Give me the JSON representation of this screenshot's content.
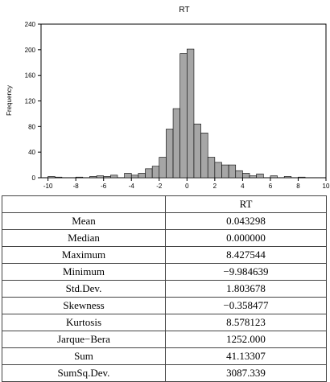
{
  "chart_data": {
    "type": "bar",
    "title": "RT",
    "xlabel": "",
    "ylabel": "Frequency",
    "xlim": [
      -10.5,
      10
    ],
    "ylim": [
      0,
      240
    ],
    "xticks": [
      "-10",
      "-8",
      "-6",
      "-4",
      "-2",
      "0",
      "2",
      "4",
      "6",
      "8",
      "10"
    ],
    "yticks": [
      "0",
      "40",
      "80",
      "120",
      "160",
      "200",
      "240"
    ],
    "bin_width": 0.5,
    "bins": [
      {
        "x": -10.0,
        "count": 2
      },
      {
        "x": -9.5,
        "count": 1
      },
      {
        "x": -8.0,
        "count": 1
      },
      {
        "x": -7.0,
        "count": 2
      },
      {
        "x": -6.5,
        "count": 3
      },
      {
        "x": -6.0,
        "count": 2
      },
      {
        "x": -5.5,
        "count": 4
      },
      {
        "x": -4.5,
        "count": 7
      },
      {
        "x": -4.0,
        "count": 4
      },
      {
        "x": -3.5,
        "count": 7
      },
      {
        "x": -3.0,
        "count": 14
      },
      {
        "x": -2.5,
        "count": 18
      },
      {
        "x": -2.0,
        "count": 32
      },
      {
        "x": -1.5,
        "count": 76
      },
      {
        "x": -1.0,
        "count": 108
      },
      {
        "x": -0.5,
        "count": 194
      },
      {
        "x": 0.0,
        "count": 201
      },
      {
        "x": 0.5,
        "count": 84
      },
      {
        "x": 1.0,
        "count": 70
      },
      {
        "x": 1.5,
        "count": 32
      },
      {
        "x": 2.0,
        "count": 24
      },
      {
        "x": 2.5,
        "count": 20
      },
      {
        "x": 3.0,
        "count": 20
      },
      {
        "x": 3.5,
        "count": 11
      },
      {
        "x": 4.0,
        "count": 7
      },
      {
        "x": 4.5,
        "count": 3
      },
      {
        "x": 5.0,
        "count": 6
      },
      {
        "x": 6.0,
        "count": 3
      },
      {
        "x": 7.0,
        "count": 2
      },
      {
        "x": 8.0,
        "count": 1
      }
    ],
    "bar_color": "#a6a6a6",
    "grid": false
  },
  "table": {
    "header": "RT",
    "rows": [
      {
        "label": "Mean",
        "value": "0.043298"
      },
      {
        "label": "Median",
        "value": "0.000000"
      },
      {
        "label": "Maximum",
        "value": "8.427544"
      },
      {
        "label": "Minimum",
        "value": "−9.984639"
      },
      {
        "label": "Std.Dev.",
        "value": "1.803678"
      },
      {
        "label": "Skewness",
        "value": "−0.358477"
      },
      {
        "label": "Kurtosis",
        "value": "8.578123"
      },
      {
        "label": "Jarque−Bera",
        "value": "1252.000"
      },
      {
        "label": "Sum",
        "value": "41.13307"
      },
      {
        "label": "SumSq.Dev.",
        "value": "3087.339"
      }
    ]
  }
}
